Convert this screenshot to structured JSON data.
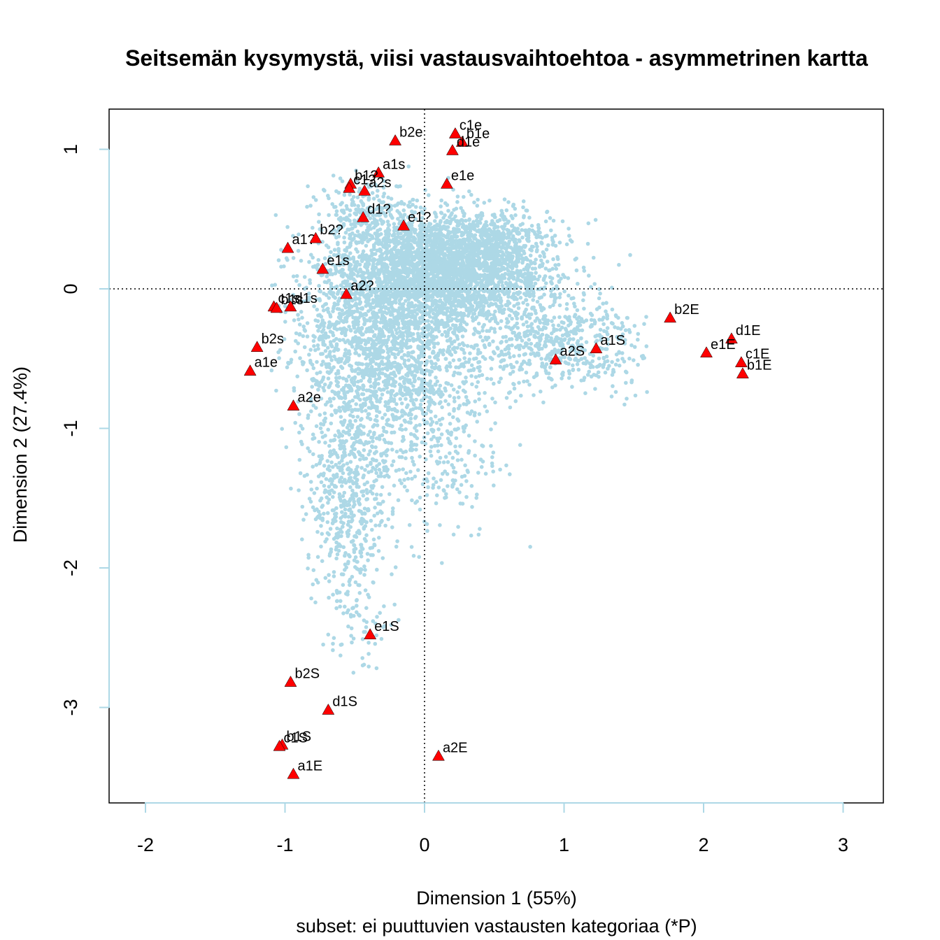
{
  "chart_data": {
    "type": "scatter",
    "title": "Seitsemän kysymystä, viisi vastausvaihtoehtoa - asymmetrinen kartta",
    "xlabel": "Dimension 1 (55%)",
    "subtitle": "subset: ei puuttuvien vastausten kategoriaa (*P)",
    "ylabel": "Dimension 2 (27.4%)",
    "xlim": [
      -2.25,
      3.28
    ],
    "ylim": [
      -3.68,
      1.29
    ],
    "x_ticks": [
      -2,
      -1,
      0,
      1,
      2,
      3
    ],
    "x_tick_labels": [
      "-2",
      "-1",
      "0",
      "1",
      "2",
      "3"
    ],
    "y_ticks": [
      -3,
      -2,
      -1,
      0,
      1
    ],
    "y_tick_labels": [
      "-3",
      "-2",
      "-1",
      "0",
      "1"
    ],
    "reference_lines": {
      "x": 0,
      "y": 0,
      "style": "dotted"
    },
    "grid": false,
    "colors": {
      "rows": "#add8e6",
      "columns": "#ff0000",
      "axis": "#add8e6"
    },
    "series": [
      {
        "name": "columns",
        "marker": "triangle",
        "points": [
          {
            "label": "b2e",
            "x": -0.21,
            "y": 1.06
          },
          {
            "label": "c1e",
            "x": 0.22,
            "y": 1.11
          },
          {
            "label": "b1e",
            "x": 0.27,
            "y": 1.05
          },
          {
            "label": "d1e",
            "x": 0.2,
            "y": 0.99
          },
          {
            "label": "a1s",
            "x": -0.33,
            "y": 0.83
          },
          {
            "label": "b1?",
            "x": -0.53,
            "y": 0.75
          },
          {
            "label": "c1?",
            "x": -0.54,
            "y": 0.72
          },
          {
            "label": "a2s",
            "x": -0.43,
            "y": 0.7
          },
          {
            "label": "e1e",
            "x": 0.16,
            "y": 0.75
          },
          {
            "label": "d1?",
            "x": -0.44,
            "y": 0.51
          },
          {
            "label": "e1?",
            "x": -0.15,
            "y": 0.45
          },
          {
            "label": "a1?",
            "x": -0.98,
            "y": 0.29
          },
          {
            "label": "b2?",
            "x": -0.78,
            "y": 0.36
          },
          {
            "label": "e1s",
            "x": -0.73,
            "y": 0.14
          },
          {
            "label": "a2?",
            "x": -0.56,
            "y": -0.04
          },
          {
            "label": "c1s",
            "x": -1.08,
            "y": -0.13
          },
          {
            "label": "b1s",
            "x": -1.06,
            "y": -0.14
          },
          {
            "label": "d1s",
            "x": -0.96,
            "y": -0.13
          },
          {
            "label": "b2s",
            "x": -1.2,
            "y": -0.42
          },
          {
            "label": "a1e",
            "x": -1.25,
            "y": -0.59
          },
          {
            "label": "a2e",
            "x": -0.94,
            "y": -0.84
          },
          {
            "label": "b2E",
            "x": 1.76,
            "y": -0.21
          },
          {
            "label": "d1E",
            "x": 2.2,
            "y": -0.36
          },
          {
            "label": "e1E",
            "x": 2.02,
            "y": -0.46
          },
          {
            "label": "c1E",
            "x": 2.27,
            "y": -0.53
          },
          {
            "label": "b1E",
            "x": 2.28,
            "y": -0.61
          },
          {
            "label": "a1S",
            "x": 1.23,
            "y": -0.43
          },
          {
            "label": "a2S",
            "x": 0.94,
            "y": -0.51
          },
          {
            "label": "e1S",
            "x": -0.39,
            "y": -2.48
          },
          {
            "label": "b2S",
            "x": -0.96,
            "y": -2.82
          },
          {
            "label": "d1S",
            "x": -0.69,
            "y": -3.02
          },
          {
            "label": "b1S",
            "x": -1.02,
            "y": -3.27
          },
          {
            "label": "c1S",
            "x": -1.04,
            "y": -3.28
          },
          {
            "label": "a1E",
            "x": -0.94,
            "y": -3.48
          },
          {
            "label": "a2E",
            "x": 0.1,
            "y": -3.35
          }
        ]
      },
      {
        "name": "rows",
        "marker": "dot",
        "points": []
      }
    ]
  }
}
